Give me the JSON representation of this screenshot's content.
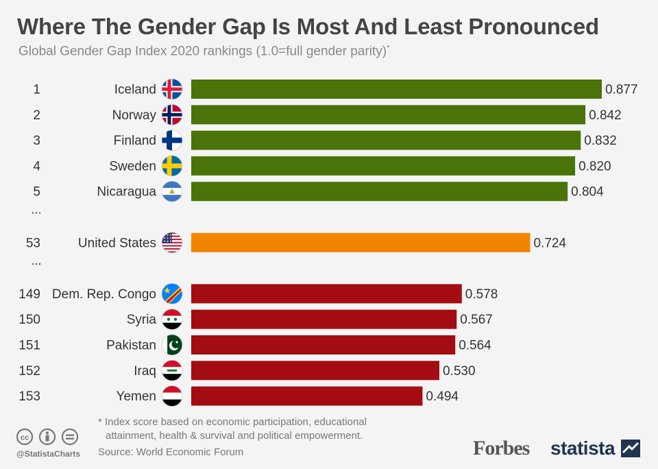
{
  "header": {
    "title": "Where The Gender Gap Is Most And Least Pronounced",
    "subtitle": "Global Gender Gap Index 2020 rankings (1.0=full gender parity)",
    "subtitle_mark": "*"
  },
  "chart_data": {
    "type": "bar",
    "orientation": "horizontal",
    "title": "Where The Gender Gap Is Most And Least Pronounced",
    "subtitle": "Global Gender Gap Index 2020 rankings (1.0=full gender parity)",
    "xlim": [
      0,
      0.877
    ],
    "rows": [
      {
        "rank": "1",
        "country": "Iceland",
        "value": 0.877,
        "label": "0.877",
        "group": "top",
        "flag": "iceland-flag-icon"
      },
      {
        "rank": "2",
        "country": "Norway",
        "value": 0.842,
        "label": "0.842",
        "group": "top",
        "flag": "norway-flag-icon"
      },
      {
        "rank": "3",
        "country": "Finland",
        "value": 0.832,
        "label": "0.832",
        "group": "top",
        "flag": "finland-flag-icon"
      },
      {
        "rank": "4",
        "country": "Sweden",
        "value": 0.82,
        "label": "0.820",
        "group": "top",
        "flag": "sweden-flag-icon"
      },
      {
        "rank": "5",
        "country": "Nicaragua",
        "value": 0.804,
        "label": "0.804",
        "group": "top",
        "flag": "nicaragua-flag-icon"
      },
      {
        "rank": "...",
        "country": "",
        "value": null,
        "label": "",
        "group": "gap"
      },
      {
        "rank": "53",
        "country": "United States",
        "value": 0.724,
        "label": "0.724",
        "group": "us",
        "flag": "usa-flag-icon"
      },
      {
        "rank": "...",
        "country": "",
        "value": null,
        "label": "",
        "group": "gap"
      },
      {
        "rank": "149",
        "country": "Dem. Rep. Congo",
        "value": 0.578,
        "label": "0.578",
        "group": "bottom",
        "flag": "dr-congo-flag-icon"
      },
      {
        "rank": "150",
        "country": "Syria",
        "value": 0.567,
        "label": "0.567",
        "group": "bottom",
        "flag": "syria-flag-icon"
      },
      {
        "rank": "151",
        "country": "Pakistan",
        "value": 0.564,
        "label": "0.564",
        "group": "bottom",
        "flag": "pakistan-flag-icon"
      },
      {
        "rank": "152",
        "country": "Iraq",
        "value": 0.53,
        "label": "0.530",
        "group": "bottom",
        "flag": "iraq-flag-icon"
      },
      {
        "rank": "153",
        "country": "Yemen",
        "value": 0.494,
        "label": "0.494",
        "group": "bottom",
        "flag": "yemen-flag-icon"
      }
    ],
    "colors": {
      "top": "#4a7309",
      "us": "#f28500",
      "bottom": "#a30c10"
    }
  },
  "footer": {
    "footnote_line1": "* Index score based on economic participation, educational",
    "footnote_line2": "attainment, health & survival and political empowerment.",
    "source": "Source: World Economic Forum",
    "handle": "@StatistaCharts",
    "forbes": "Forbes",
    "statista": "statista"
  }
}
